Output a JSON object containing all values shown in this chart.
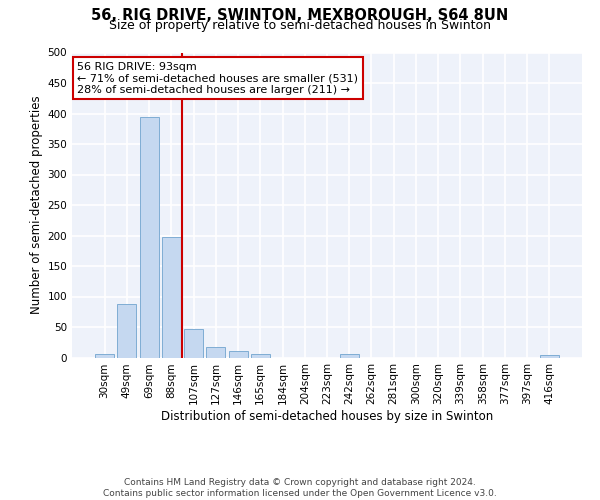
{
  "title": "56, RIG DRIVE, SWINTON, MEXBOROUGH, S64 8UN",
  "subtitle": "Size of property relative to semi-detached houses in Swinton",
  "xlabel": "Distribution of semi-detached houses by size in Swinton",
  "ylabel": "Number of semi-detached properties",
  "categories": [
    "30sqm",
    "49sqm",
    "69sqm",
    "88sqm",
    "107sqm",
    "127sqm",
    "146sqm",
    "165sqm",
    "184sqm",
    "204sqm",
    "223sqm",
    "242sqm",
    "262sqm",
    "281sqm",
    "300sqm",
    "320sqm",
    "339sqm",
    "358sqm",
    "377sqm",
    "397sqm",
    "416sqm"
  ],
  "values": [
    5,
    87,
    394,
    197,
    47,
    17,
    10,
    5,
    0,
    0,
    0,
    5,
    0,
    0,
    0,
    0,
    0,
    0,
    0,
    0,
    4
  ],
  "bar_color": "#c5d8f0",
  "bar_edge_color": "#7fadd4",
  "vline_color": "#cc0000",
  "vline_x": 3.5,
  "annotation_text": "56 RIG DRIVE: 93sqm\n← 71% of semi-detached houses are smaller (531)\n28% of semi-detached houses are larger (211) →",
  "annotation_box_color": "#ffffff",
  "annotation_box_edge": "#cc0000",
  "ylim": [
    0,
    500
  ],
  "yticks": [
    0,
    50,
    100,
    150,
    200,
    250,
    300,
    350,
    400,
    450,
    500
  ],
  "footer": "Contains HM Land Registry data © Crown copyright and database right 2024.\nContains public sector information licensed under the Open Government Licence v3.0.",
  "background_color": "#eef2fa",
  "grid_color": "#ffffff",
  "title_fontsize": 10.5,
  "subtitle_fontsize": 9,
  "axis_label_fontsize": 8.5,
  "tick_fontsize": 7.5,
  "annotation_fontsize": 8,
  "footer_fontsize": 6.5
}
